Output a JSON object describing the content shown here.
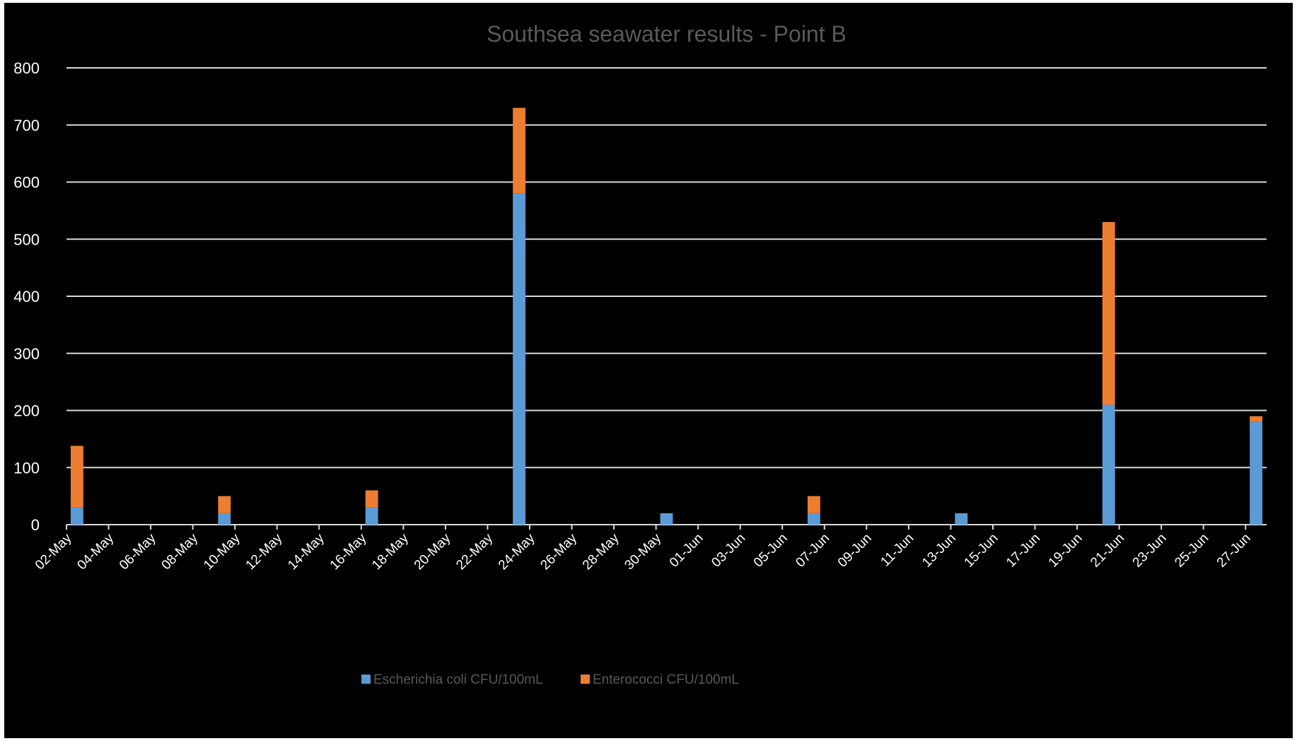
{
  "chart_data": {
    "type": "bar",
    "stacked": true,
    "title": "Southsea seawater results - Point B",
    "xlabel": "",
    "ylabel": "",
    "ylim": [
      0,
      800
    ],
    "yticks": [
      0,
      100,
      200,
      300,
      400,
      500,
      600,
      700,
      800
    ],
    "x_range": [
      "2024-05-02",
      "2024-06-28"
    ],
    "x_tick_labels": [
      "02-May",
      "04-May",
      "06-May",
      "08-May",
      "10-May",
      "12-May",
      "14-May",
      "16-May",
      "18-May",
      "20-May",
      "22-May",
      "24-May",
      "26-May",
      "28-May",
      "30-May",
      "01-Jun",
      "03-Jun",
      "05-Jun",
      "07-Jun",
      "09-Jun",
      "11-Jun",
      "13-Jun",
      "15-Jun",
      "17-Jun",
      "19-Jun",
      "21-Jun",
      "23-Jun",
      "25-Jun",
      "27-Jun"
    ],
    "x_tick_dates": [
      "2024-05-02",
      "2024-05-04",
      "2024-05-06",
      "2024-05-08",
      "2024-05-10",
      "2024-05-12",
      "2024-05-14",
      "2024-05-16",
      "2024-05-18",
      "2024-05-20",
      "2024-05-22",
      "2024-05-24",
      "2024-05-26",
      "2024-05-28",
      "2024-05-30",
      "2024-06-01",
      "2024-06-03",
      "2024-06-05",
      "2024-06-07",
      "2024-06-09",
      "2024-06-11",
      "2024-06-13",
      "2024-06-15",
      "2024-06-17",
      "2024-06-19",
      "2024-06-21",
      "2024-06-23",
      "2024-06-25",
      "2024-06-27"
    ],
    "grid": true,
    "legend_position": "bottom",
    "x": [
      "2024-05-02",
      "2024-05-09",
      "2024-05-16",
      "2024-05-23",
      "2024-05-30",
      "2024-06-06",
      "2024-06-13",
      "2024-06-20",
      "2024-06-27"
    ],
    "series": [
      {
        "name": "Escherichia coli CFU/100mL",
        "color": "#5b9bd5",
        "values": [
          30,
          20,
          30,
          580,
          20,
          20,
          20,
          210,
          180
        ]
      },
      {
        "name": "Enterococci CFU/100mL",
        "color": "#ed7d31",
        "values": [
          108,
          30,
          30,
          150,
          0,
          30,
          0,
          320,
          10
        ]
      }
    ]
  }
}
